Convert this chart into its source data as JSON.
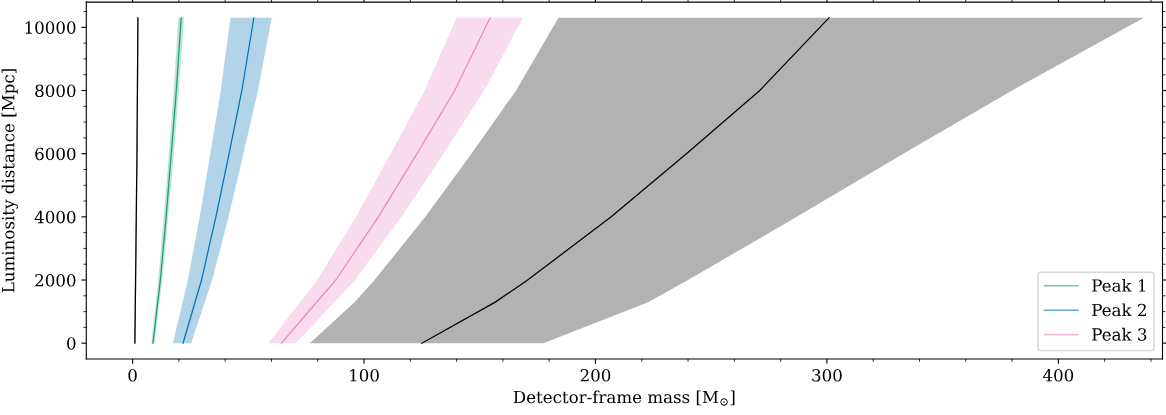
{
  "chart_data": {
    "type": "line",
    "orientation": "horizontal",
    "xlabel": "Detector-frame mass [M$_{⊙}$]",
    "ylabel": "Luminosity distance [Mpc]",
    "xlim": [
      -20,
      445
    ],
    "ylim": [
      -500,
      10800
    ],
    "xticks": [
      0,
      100,
      200,
      300,
      400
    ],
    "yticks": [
      0,
      2000,
      4000,
      6000,
      8000,
      10000
    ],
    "legend": "lower right",
    "series": [
      {
        "color": "#000000",
        "x": [
          0,
          2000,
          4000,
          6000,
          8000,
          10300
        ],
        "values": [
          1.0,
          1.3,
          1.6,
          1.9,
          2.1,
          2.3
        ],
        "lower": [
          0.7,
          1.0,
          1.3,
          1.6,
          1.8,
          2.0
        ],
        "upper": [
          1.3,
          1.6,
          1.9,
          2.2,
          2.4,
          2.6
        ]
      },
      {
        "name": "Peak 1",
        "color": "#1b9e77",
        "x": [
          0,
          2000,
          4000,
          6000,
          8000,
          10300
        ],
        "values": [
          8.8,
          12.0,
          14.5,
          16.7,
          18.9,
          21.0
        ],
        "lower": [
          8.1,
          11.1,
          13.5,
          15.7,
          17.8,
          19.8
        ],
        "upper": [
          9.5,
          12.8,
          15.4,
          17.8,
          20.0,
          22.2
        ]
      },
      {
        "name": "Peak 2",
        "color": "#0072b2",
        "x": [
          0,
          2000,
          4000,
          6000,
          8000,
          10300
        ],
        "values": [
          21.8,
          29.8,
          36.0,
          41.7,
          47.2,
          52.4
        ],
        "lower": [
          17.4,
          23.9,
          29.0,
          33.6,
          38.1,
          42.3
        ],
        "upper": [
          25.3,
          34.4,
          41.5,
          47.9,
          54.2,
          60.1
        ]
      },
      {
        "name": "Peak 3",
        "color": "#e78ac3",
        "x": [
          0,
          2000,
          4000,
          6000,
          8000,
          10300
        ],
        "values": [
          64.3,
          87.8,
          106.2,
          122.9,
          139.2,
          154.5
        ],
        "lower": [
          58.6,
          79.8,
          96.5,
          111.5,
          126.2,
          140.0
        ],
        "upper": [
          70.6,
          96.1,
          116.2,
          134.3,
          151.9,
          168.6
        ]
      },
      {
        "color": "#000000",
        "x": [
          0,
          1300,
          2000,
          4000,
          6000,
          8000,
          10300
        ],
        "values": [
          125.0,
          156.7,
          170.7,
          206.8,
          239.3,
          271.0,
          300.9
        ],
        "lower": [
          76.6,
          96.0,
          104.5,
          126.5,
          146.4,
          165.7,
          184.0
        ],
        "upper": [
          177.5,
          223.0,
          240.0,
          287.0,
          333.0,
          380.0,
          437.0
        ]
      }
    ]
  }
}
